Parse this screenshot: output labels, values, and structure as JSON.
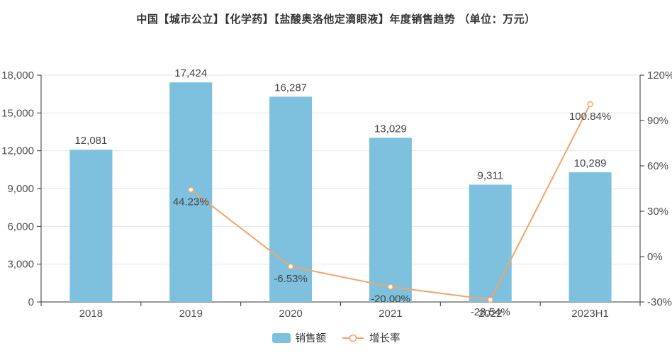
{
  "title": "中国【城市公立】【化学药】【盐酸奥洛他定滴眼液】年度销售趋势 （单位：万元）",
  "legend": [
    {
      "label": "销售额",
      "type": "bar",
      "color": "#7EC1DE"
    },
    {
      "label": "增长率",
      "type": "line",
      "color": "#F1A46A"
    }
  ],
  "colors": {
    "grid": "#e4e4e4",
    "axis": "#333333",
    "tick_text": "#4f4f4f",
    "label_text": "#444444",
    "point_fill": "#ffffff",
    "background": "#ffffff"
  },
  "chart_data": {
    "type": "bar+line",
    "title": "中国【城市公立】【化学药】【盐酸奥洛他定滴眼液】年度销售趋势 （单位：万元）",
    "categories": [
      "2018",
      "2019",
      "2020",
      "2021",
      "2022",
      "2023H1"
    ],
    "series": [
      {
        "name": "销售额",
        "type": "bar",
        "axis": "left",
        "color": "#7EC1DE",
        "values": [
          12081,
          17424,
          16287,
          13029,
          9311,
          10289
        ],
        "labels": [
          "12,081",
          "17,424",
          "16,287",
          "13,029",
          "9,311",
          "10,289"
        ]
      },
      {
        "name": "增长率",
        "type": "line",
        "axis": "right",
        "color": "#F1A46A",
        "values": [
          null,
          44.23,
          -6.53,
          -20.0,
          -28.54,
          100.84
        ],
        "labels": [
          "",
          "44.23%",
          "-6.53%",
          "-20.00%",
          "-28.54%",
          "100.84%"
        ]
      }
    ],
    "left_axis": {
      "min": 0,
      "max": 18000,
      "step": 3000,
      "tick_labels": [
        "0",
        "3,000",
        "6,000",
        "9,000",
        "12,000",
        "15,000",
        "18,000"
      ]
    },
    "right_axis": {
      "min": -30,
      "max": 120,
      "step": 30,
      "tick_labels": [
        "-30%",
        "0%",
        "30%",
        "60%",
        "90%",
        "120%"
      ]
    },
    "grid": true,
    "legend_position": "bottom"
  }
}
